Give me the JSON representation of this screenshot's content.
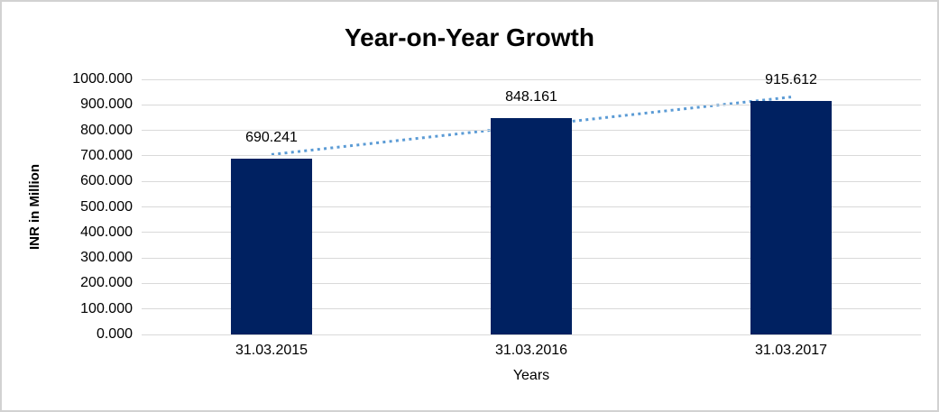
{
  "chart_data": {
    "type": "bar",
    "title": "Year-on-Year Growth",
    "xlabel": "Years",
    "ylabel": "INR in Million",
    "categories": [
      "31.03.2015",
      "31.03.2016",
      "31.03.2017"
    ],
    "values": [
      690.241,
      848.161,
      915.612
    ],
    "data_labels": [
      "690.241",
      "848.161",
      "915.612"
    ],
    "ylim": [
      0,
      1000
    ],
    "ytick_step": 100,
    "ytick_labels": [
      "0.000",
      "100.000",
      "200.000",
      "300.000",
      "400.000",
      "500.000",
      "600.000",
      "700.000",
      "800.000",
      "900.000",
      "1000.000"
    ],
    "grid": "horizontal",
    "legend": "none",
    "colors": {
      "bar": "#002161",
      "trendline": "#5b9bd5",
      "gridline": "#d9d9d9",
      "text": "#000000"
    },
    "trendline": {
      "type": "linear",
      "style": "dotted"
    }
  }
}
